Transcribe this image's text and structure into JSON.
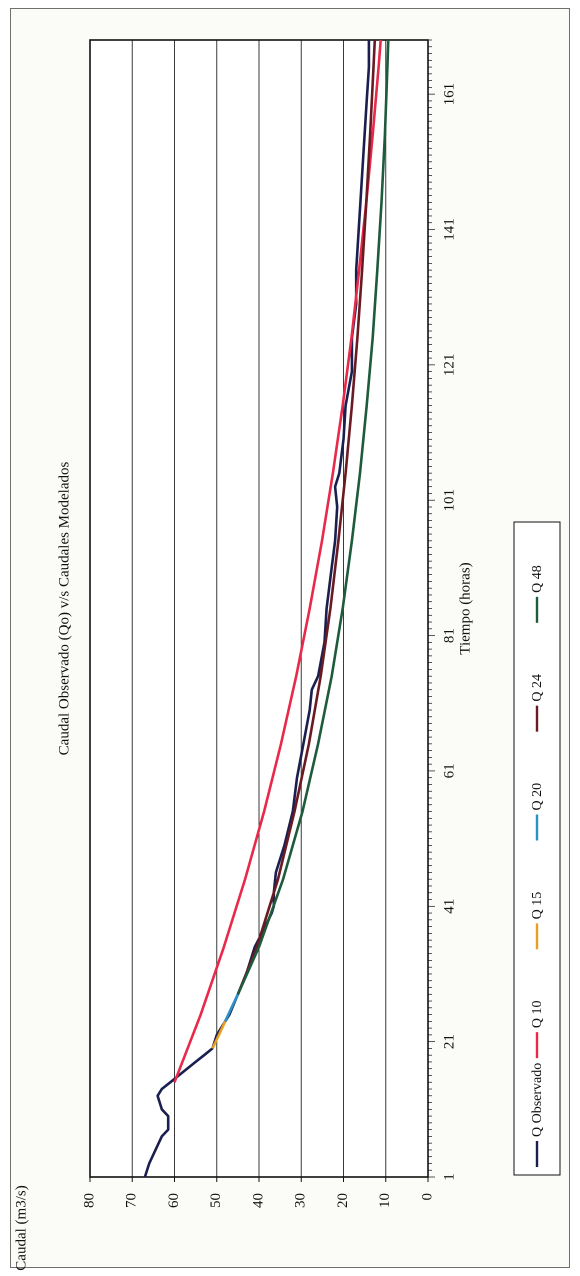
{
  "chart_data": {
    "type": "line",
    "title": "Caudal Observado (Qo) v/s Caudales Modelados",
    "xlabel": "Tiempo (horas)",
    "ylabel": "Caudal (m3/s)",
    "xlim": [
      1,
      169
    ],
    "ylim": [
      0,
      80
    ],
    "x_ticks": [
      1,
      21,
      41,
      61,
      81,
      101,
      121,
      141,
      161
    ],
    "y_ticks": [
      0,
      10,
      20,
      30,
      40,
      50,
      60,
      70,
      80
    ],
    "grid": "horizontal",
    "legend_position": "bottom",
    "orientation": "rotated-90-counterclockwise",
    "series": [
      {
        "name": "Q Observado",
        "color": "#1a1f4f",
        "points": [
          [
            1,
            67
          ],
          [
            3,
            66
          ],
          [
            5,
            64.5
          ],
          [
            7,
            63
          ],
          [
            8,
            61.5
          ],
          [
            10,
            61.5
          ],
          [
            11,
            63
          ],
          [
            13,
            64
          ],
          [
            14,
            63
          ],
          [
            15,
            61
          ],
          [
            16,
            59
          ],
          [
            18,
            55
          ],
          [
            19,
            53
          ],
          [
            20,
            51
          ],
          [
            22,
            50
          ],
          [
            25,
            47
          ],
          [
            28,
            45
          ],
          [
            31,
            43
          ],
          [
            35,
            41
          ],
          [
            38,
            38.5
          ],
          [
            40,
            37
          ],
          [
            41,
            36.5
          ],
          [
            43,
            36.5
          ],
          [
            46,
            36
          ],
          [
            50,
            34
          ],
          [
            55,
            32
          ],
          [
            60,
            31
          ],
          [
            65,
            29.5
          ],
          [
            70,
            28
          ],
          [
            73,
            27.5
          ],
          [
            75,
            26
          ],
          [
            80,
            24.5
          ],
          [
            85,
            24
          ],
          [
            90,
            23
          ],
          [
            95,
            22
          ],
          [
            100,
            21.5
          ],
          [
            103,
            22
          ],
          [
            105,
            21
          ],
          [
            110,
            20
          ],
          [
            115,
            19.5
          ],
          [
            120,
            18
          ],
          [
            125,
            18
          ],
          [
            130,
            17
          ],
          [
            135,
            17
          ],
          [
            140,
            16.5
          ],
          [
            145,
            16
          ],
          [
            150,
            15.5
          ],
          [
            155,
            15
          ],
          [
            160,
            14.5
          ],
          [
            165,
            14
          ],
          [
            169,
            14
          ]
        ]
      },
      {
        "name": "Q 10",
        "color": "#e8294a",
        "points": [
          [
            15,
            60
          ],
          [
            25,
            53.8
          ],
          [
            35,
            48.3
          ],
          [
            45,
            43.3
          ],
          [
            55,
            38.8
          ],
          [
            65,
            34.8
          ],
          [
            75,
            31.2
          ],
          [
            85,
            28
          ],
          [
            95,
            25.1
          ],
          [
            105,
            22.5
          ],
          [
            115,
            20.2
          ],
          [
            125,
            18.1
          ],
          [
            135,
            16.3
          ],
          [
            145,
            14.6
          ],
          [
            155,
            13.1
          ],
          [
            165,
            11.7
          ],
          [
            169,
            11.2
          ]
        ]
      },
      {
        "name": "Q 15",
        "color": "#e8a020",
        "points": [
          [
            20,
            51
          ],
          [
            22,
            49.5
          ],
          [
            24,
            48
          ]
        ]
      },
      {
        "name": "Q 20",
        "color": "#2a90c8",
        "points": [
          [
            24,
            48
          ],
          [
            26,
            46.5
          ],
          [
            28,
            45
          ]
        ]
      },
      {
        "name": "Q 24",
        "color": "#6a1a22",
        "points": [
          [
            28,
            45
          ],
          [
            35,
            40.5
          ],
          [
            45,
            35.5
          ],
          [
            55,
            31.6
          ],
          [
            65,
            28.2
          ],
          [
            75,
            25.4
          ],
          [
            85,
            23.1
          ],
          [
            95,
            21.2
          ],
          [
            105,
            19.5
          ],
          [
            115,
            18
          ],
          [
            125,
            16.7
          ],
          [
            135,
            15.6
          ],
          [
            145,
            14.6
          ],
          [
            155,
            13.7
          ],
          [
            165,
            12.9
          ],
          [
            169,
            12.6
          ]
        ]
      },
      {
        "name": "Q 48",
        "color": "#1e5a3c",
        "points": [
          [
            28,
            45
          ],
          [
            35,
            40
          ],
          [
            45,
            34.3
          ],
          [
            55,
            29.7
          ],
          [
            65,
            26
          ],
          [
            75,
            22.8
          ],
          [
            85,
            20.2
          ],
          [
            95,
            18
          ],
          [
            105,
            16.1
          ],
          [
            115,
            14.5
          ],
          [
            125,
            13.1
          ],
          [
            135,
            12
          ],
          [
            145,
            11
          ],
          [
            155,
            10.2
          ],
          [
            165,
            9.6
          ],
          [
            169,
            9.4
          ]
        ]
      }
    ]
  }
}
